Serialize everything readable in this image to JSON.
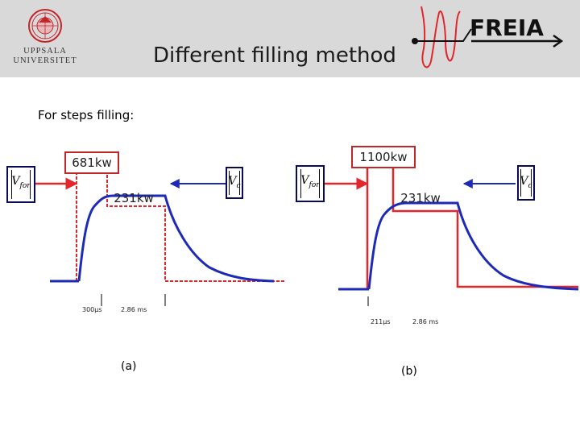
{
  "header": {
    "institution_lines": [
      "UPPSALA",
      "UNIVERSITET"
    ],
    "title": "Different filling method",
    "project_logo_text": "FREIA"
  },
  "body": {
    "subtitle": "For steps filling:"
  },
  "panel_a": {
    "callout_top": "681kw",
    "callout_mid": "231kw",
    "vfor_symbol": "V",
    "vfor_sub": "for",
    "vc_symbol": "V",
    "vc_sub": "c",
    "time1": "300µs",
    "time2": "2.86 ms",
    "caption": "(a)"
  },
  "panel_b": {
    "callout_top": "1100kw",
    "callout_mid": "231kw",
    "vfor_symbol": "V",
    "vfor_sub": "for",
    "vc_symbol": "V",
    "vc_sub": "c",
    "time1": "211µs",
    "time2": "2.86 ms",
    "caption": "(b)"
  },
  "colors": {
    "forward": "#e3262c",
    "cavity": "#1d2ab8",
    "header_bg": "#d9d9d9"
  }
}
